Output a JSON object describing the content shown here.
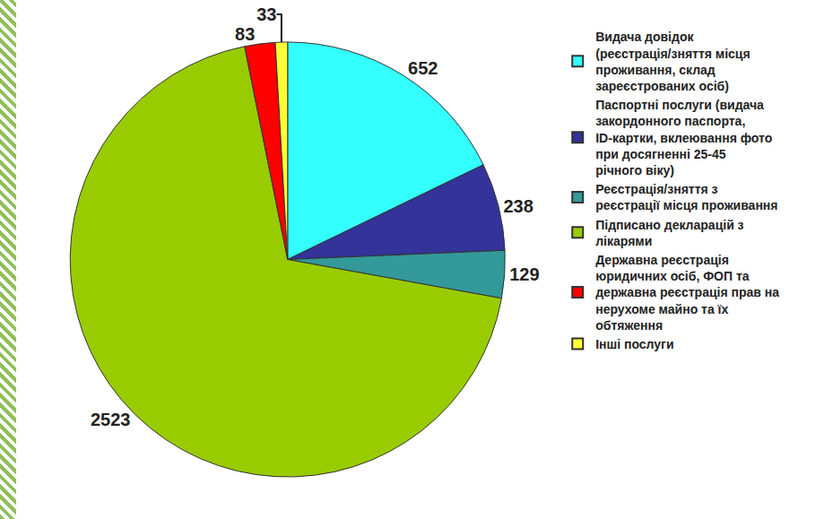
{
  "chart_data": {
    "type": "pie",
    "categories": [
      "Видача довідок (реєстрація/зняття місця проживання, склад зареєстрованих осіб)",
      "Паспортні послуги (видача закордонного паспорта, ID-картки, вклеювання фото при досягненні 25-45 річного віку)",
      "Реєстрація/зняття з реєстрації місця проживання",
      "Підписано декларацій з лікарями",
      "Державна реєстрація юридичних осіб, ФОП та державна реєстрація прав на нерухоме майно та їх обтяження",
      "Інші послуги"
    ],
    "values": [
      652,
      238,
      129,
      2523,
      83,
      33
    ],
    "colors": [
      "#33ffff",
      "#333399",
      "#339999",
      "#99cc00",
      "#ff0000",
      "#ffff33"
    ],
    "data_labels": true,
    "legend": "right"
  }
}
